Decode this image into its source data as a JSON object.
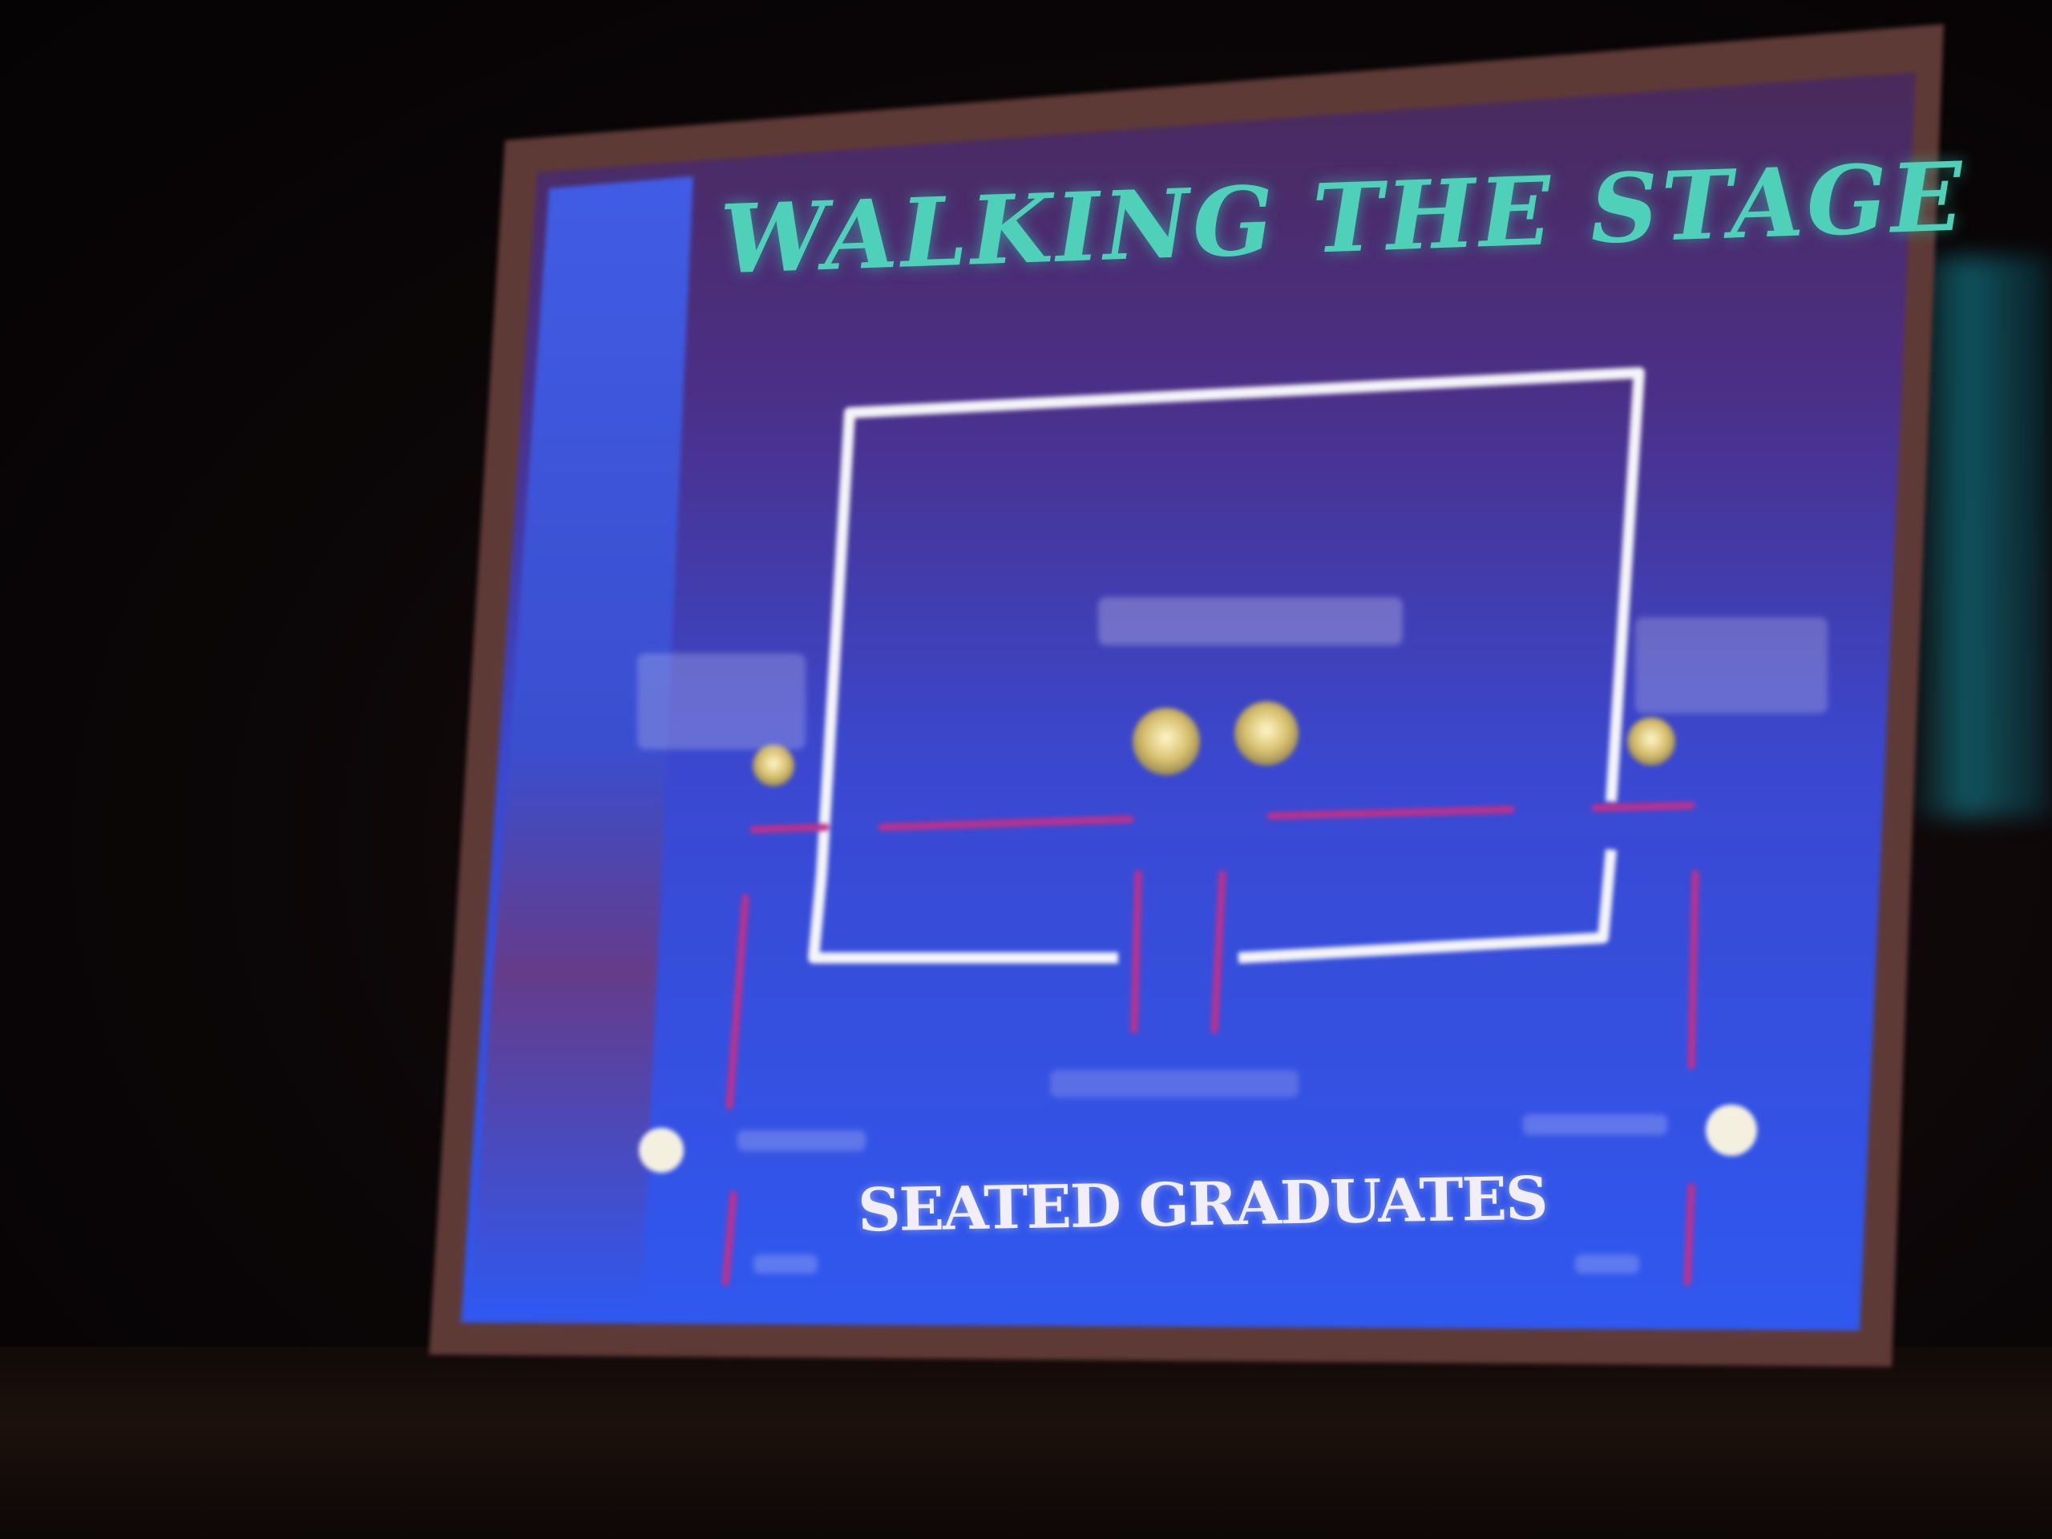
{
  "slide": {
    "title": "WALKING THE STAGE",
    "bottom_label": "SEATED GRADUATES"
  },
  "colors": {
    "slide_purple": "#5a3a9a",
    "slide_blue": "#2f4fe0",
    "left_bar_blue": "#3b5ff0",
    "title_teal": "#4fd0b8",
    "stage_outline": "#f4f4f8",
    "path_magenta": "#c0308a",
    "marker_gold": "#d8c070"
  },
  "icons": {
    "marker": "person-marker-icon"
  }
}
